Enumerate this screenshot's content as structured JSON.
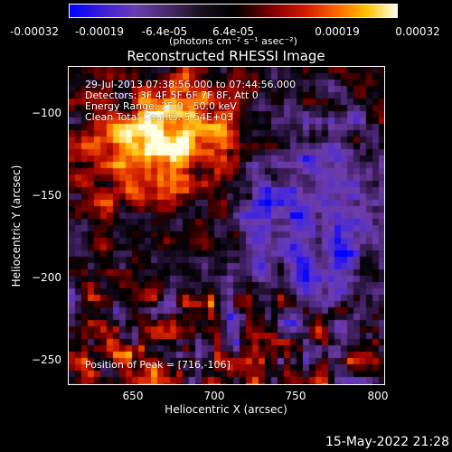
{
  "colorbar": {
    "ticks": [
      "-0.00032",
      "-0.00019",
      "-6.4e-05",
      "6.4e-05",
      "0.00019",
      "0.00032"
    ],
    "units": "(photons cm⁻² s⁻¹ asec⁻²)"
  },
  "title": "Reconstructed RHESSI Image",
  "info": {
    "time_range": "29-Jul-2013 07:38:56.000 to 07:44:56.000",
    "detectors": "Detectors: 3F 4F 5F 6F 7F 8F, Att 0",
    "energy_range": "Energy Range: 25.0 - 50.0 keV",
    "clean": "Clean    Total Counts: 5.54E+03",
    "peak": "Position of Peak = [716,-106]"
  },
  "axes": {
    "xlabel": "Heliocentric X (arcsec)",
    "ylabel": "Heliocentric Y (arcsec)",
    "xticks": [
      "650",
      "700",
      "750",
      "800"
    ],
    "yticks": [
      "−100",
      "−150",
      "−200",
      "−250"
    ]
  },
  "timestamp": "15-May-2022 21:28",
  "colors": {
    "background": "#000000",
    "text": "#ffffff"
  }
}
